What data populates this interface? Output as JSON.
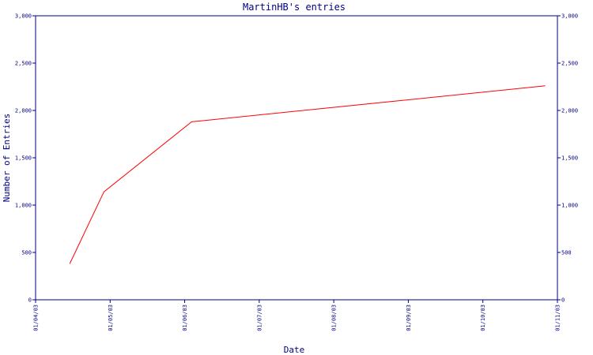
{
  "chart_data": {
    "type": "line",
    "title": "MartinHB's entries",
    "xlabel": "Date",
    "ylabel": "Number of Entries",
    "x_ticks": [
      "01/04/03",
      "01/05/03",
      "01/06/03",
      "01/07/03",
      "01/08/03",
      "01/09/03",
      "01/10/03",
      "01/11/03"
    ],
    "y_ticks": [
      "0",
      "500",
      "1,000",
      "1,500",
      "2,000",
      "2,500",
      "3,000"
    ],
    "xlim": [
      "2003-04-01",
      "2003-11-01"
    ],
    "ylim": [
      0,
      3000
    ],
    "grid": false,
    "series": [
      {
        "color": "#ff0000",
        "x": [
          "2003-04-15",
          "2003-04-29",
          "2003-06-04",
          "2003-10-27"
        ],
        "y": [
          380,
          1140,
          1880,
          2260
        ]
      }
    ]
  },
  "colors": {
    "axis": "#000080",
    "line": "#ff0000",
    "background": "#ffffff"
  }
}
